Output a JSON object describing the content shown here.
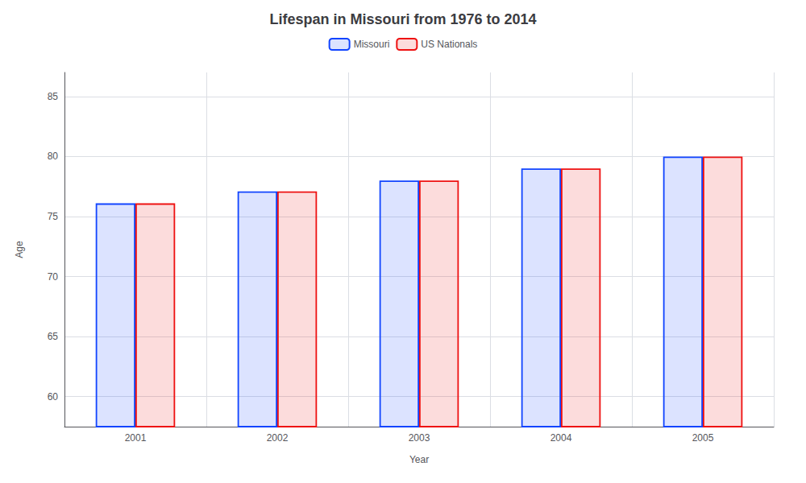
{
  "chart_data": {
    "type": "bar",
    "title": "Lifespan in Missouri from 1976 to 2014",
    "xlabel": "Year",
    "ylabel": "Age",
    "categories": [
      "2001",
      "2002",
      "2003",
      "2004",
      "2005"
    ],
    "series": [
      {
        "name": "Missouri",
        "color": "#1144ff",
        "values": [
          76.1,
          77.1,
          78.0,
          79.0,
          80.0
        ]
      },
      {
        "name": "US Nationals",
        "color": "#ee1111",
        "values": [
          76.1,
          77.1,
          78.0,
          79.0,
          80.0
        ]
      }
    ],
    "ylim": [
      57.5,
      87
    ],
    "yticks": [
      60,
      65,
      70,
      75,
      80,
      85
    ],
    "grid": true,
    "legend": "top"
  }
}
